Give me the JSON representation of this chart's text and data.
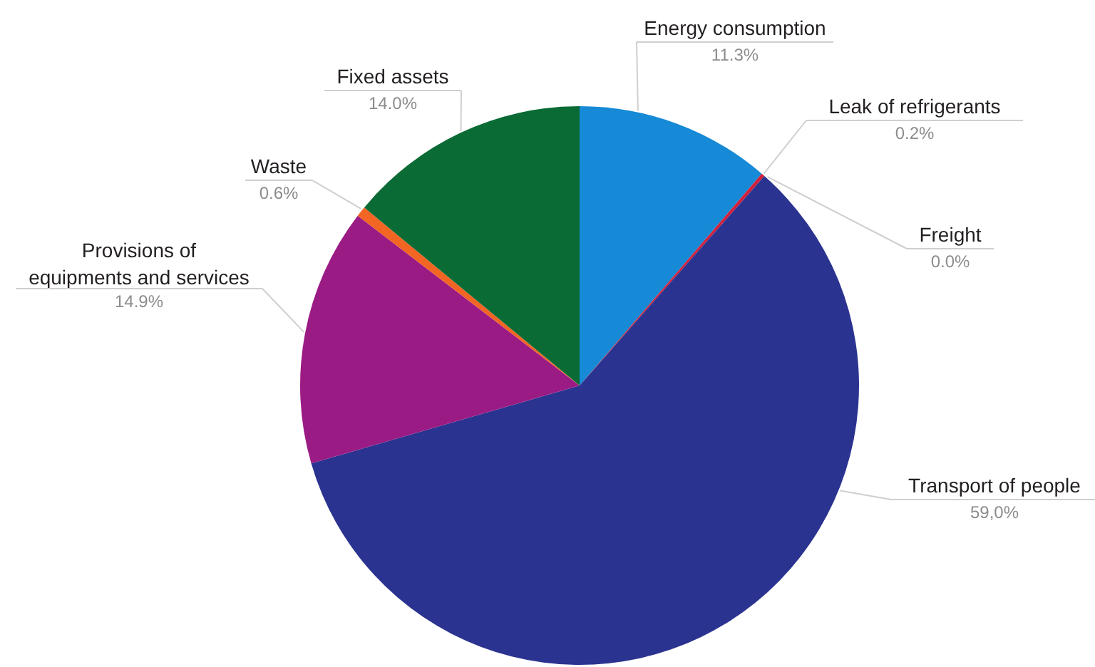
{
  "chart_data": {
    "type": "pie",
    "categories": [
      "Energy consumption",
      "Leak of refrigerants",
      "Freight",
      "Transport of people",
      "Provisions of\nequipments and services",
      "Waste",
      "Fixed assets"
    ],
    "values": [
      11.3,
      0.2,
      0.0,
      59.0,
      14.9,
      0.6,
      14.0
    ],
    "colors": [
      "#168ad6",
      "#d2203c",
      null,
      "#2b3390",
      "#9b1b84",
      "#f26522",
      "#0b6b35"
    ],
    "value_labels": [
      "11.3%",
      "0.2%",
      "0.0%",
      "59,0%",
      "14.9%",
      "0.6%",
      "14.0%"
    ]
  }
}
